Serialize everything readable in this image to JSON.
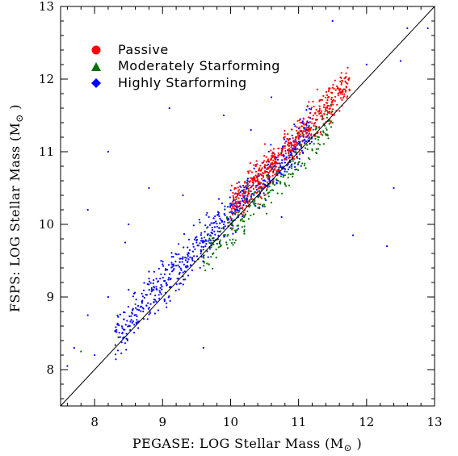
{
  "chart_data": {
    "type": "scatter",
    "xlabel": "PEGASE: LOG Stellar Mass (M",
    "ylabel": "FSPS: LOG Stellar Mass (M",
    "unit_symbol": "⊙",
    "unit_close": " )",
    "xlim": [
      7.5,
      13
    ],
    "ylim": [
      7.5,
      13
    ],
    "xticks": [
      "8",
      "9",
      "10",
      "11",
      "12",
      "13"
    ],
    "yticks": [
      "8",
      "9",
      "10",
      "11",
      "12",
      "13"
    ],
    "grid": false,
    "legend_position": "top-left",
    "reference_line": {
      "x": [
        7.5,
        13
      ],
      "y": [
        7.5,
        13
      ]
    },
    "series": [
      {
        "name": "Passive",
        "color": "#ff0000",
        "marker": "circle",
        "trend": {
          "x_range": [
            10.0,
            11.75
          ],
          "slope": 1.0,
          "offset": 0.22,
          "spread": 0.13
        },
        "points": [
          [
            10.2,
            10.45
          ],
          [
            10.4,
            10.6
          ],
          [
            10.5,
            10.8
          ],
          [
            10.6,
            10.9
          ],
          [
            10.7,
            10.95
          ],
          [
            10.8,
            11.05
          ],
          [
            10.9,
            11.1
          ],
          [
            11.0,
            11.2
          ],
          [
            11.1,
            11.3
          ],
          [
            11.2,
            11.45
          ],
          [
            11.3,
            11.55
          ],
          [
            11.4,
            11.6
          ],
          [
            11.5,
            11.7
          ],
          [
            11.6,
            11.85
          ],
          [
            11.7,
            11.95
          ],
          [
            10.95,
            11.0
          ],
          [
            10.85,
            11.15
          ],
          [
            11.05,
            11.35
          ],
          [
            11.25,
            11.35
          ],
          [
            10.65,
            10.75
          ]
        ]
      },
      {
        "name": "Moderately Starforming",
        "color": "#007000",
        "marker": "triangle",
        "trend": {
          "x_range": [
            9.6,
            11.5
          ],
          "slope": 1.0,
          "offset": -0.05,
          "spread": 0.14
        },
        "points": [
          [
            7.8,
            8.25
          ],
          [
            8.6,
            8.9
          ],
          [
            9.6,
            9.55
          ],
          [
            9.9,
            9.85
          ],
          [
            10.2,
            10.1
          ],
          [
            10.5,
            10.4
          ],
          [
            10.7,
            10.6
          ],
          [
            10.9,
            10.8
          ],
          [
            11.1,
            11.05
          ],
          [
            11.3,
            11.2
          ],
          [
            11.5,
            11.4
          ],
          [
            10.6,
            10.3
          ],
          [
            10.8,
            10.55
          ],
          [
            11.0,
            10.85
          ]
        ]
      },
      {
        "name": "Highly Starforming",
        "color": "#0000ff",
        "marker": "diamond",
        "trend": {
          "x_range": [
            8.3,
            11.2
          ],
          "slope": 1.0,
          "offset": 0.15,
          "spread": 0.15
        },
        "points": [
          [
            7.6,
            8.05
          ],
          [
            7.7,
            8.3
          ],
          [
            7.9,
            8.75
          ],
          [
            8.2,
            9.0
          ],
          [
            8.5,
            9.1
          ],
          [
            8.8,
            9.35
          ],
          [
            9.0,
            9.45
          ],
          [
            9.1,
            11.6
          ],
          [
            9.3,
            9.55
          ],
          [
            9.5,
            9.75
          ],
          [
            9.7,
            9.85
          ],
          [
            9.9,
            10.0
          ],
          [
            10.1,
            10.2
          ],
          [
            10.3,
            10.35
          ],
          [
            10.5,
            10.55
          ],
          [
            10.7,
            10.75
          ],
          [
            10.9,
            10.95
          ],
          [
            11.1,
            11.05
          ],
          [
            7.9,
            10.2
          ],
          [
            8.2,
            11.0
          ],
          [
            8.5,
            10.0
          ],
          [
            8.8,
            10.5
          ],
          [
            9.3,
            10.4
          ],
          [
            9.9,
            11.5
          ],
          [
            10.3,
            11.3
          ],
          [
            10.6,
            11.75
          ],
          [
            11.5,
            12.8
          ],
          [
            12.3,
            9.7
          ],
          [
            12.6,
            12.7
          ],
          [
            12.9,
            12.7
          ],
          [
            9.6,
            8.3
          ],
          [
            12.4,
            10.5
          ],
          [
            12.5,
            12.25
          ],
          [
            12.0,
            12.2
          ],
          [
            8.0,
            8.2
          ],
          [
            8.45,
            9.75
          ],
          [
            10.75,
            10.1
          ],
          [
            11.8,
            9.85
          ]
        ]
      }
    ]
  }
}
